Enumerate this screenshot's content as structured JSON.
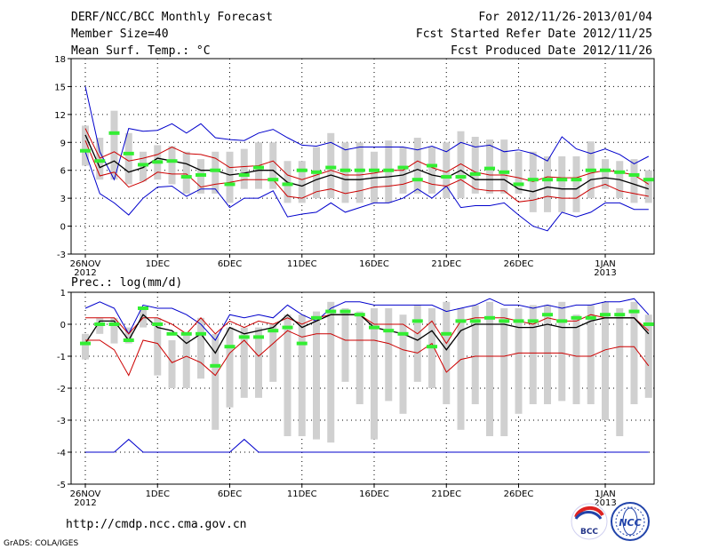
{
  "header": {
    "left": [
      "DERF/NCC/BCC Monthly Forecast",
      "Member Size=40",
      "Mean Surf. Temp.: °C"
    ],
    "right": [
      "For 2012/11/26-2013/01/04",
      "Fcst Started Refer Date 2012/11/25",
      "Fcst Produced Date 2012/11/26"
    ]
  },
  "footer": {
    "url": "http://cmdp.ncc.cma.gov.cn",
    "grads": "GrADS: COLA/IGES",
    "logo1": "BCC",
    "logo2": "NCC"
  },
  "colors": {
    "max_min": "#0000cc",
    "pct": "#cc0000",
    "mean": "#000000",
    "obs": "#33ee33",
    "box": "#d0d0d0"
  },
  "chart_data": [
    {
      "type": "line",
      "title": "Mean Surf. Temp.: °C",
      "xlabels": [
        "26NOV\n2012",
        "1DEC",
        "6DEC",
        "11DEC",
        "16DEC",
        "21DEC",
        "26DEC",
        "1JAN\n2013"
      ],
      "xlabel_days": [
        0,
        5,
        10,
        15,
        20,
        25,
        30,
        36
      ],
      "ylim": [
        -3,
        18
      ],
      "yticks": [
        -3,
        0,
        3,
        6,
        9,
        12,
        15,
        18
      ],
      "days": 40,
      "series": [
        {
          "name": "max",
          "values": [
            15,
            8,
            5,
            10.5,
            10.2,
            10.3,
            11,
            10,
            11,
            9.5,
            9.3,
            9.2,
            10,
            10.4,
            9.5,
            8.7,
            8.6,
            9,
            8.2,
            8.5,
            8.5,
            8.5,
            8.5,
            8.2,
            8.6,
            8,
            9,
            8.5,
            8.7,
            8,
            8.2,
            7.8,
            7,
            9.6,
            8.3,
            7.8,
            8.3,
            7.7,
            6.7,
            7.5
          ]
        },
        {
          "name": "min",
          "values": [
            8,
            3.5,
            2.5,
            1.2,
            3,
            4.2,
            4.3,
            3.2,
            4,
            4,
            2,
            3,
            3,
            3.8,
            1,
            1.3,
            1.5,
            2.5,
            1.5,
            2,
            2.5,
            2.5,
            3,
            4,
            3,
            4.3,
            2,
            2.2,
            2.2,
            2.5,
            1.2,
            0,
            -0.5,
            1.5,
            1,
            1.5,
            2.5,
            2.5,
            1.8,
            1.8
          ]
        },
        {
          "name": "p90",
          "values": [
            10.5,
            7.3,
            8,
            7,
            7.3,
            7.7,
            8.5,
            7.8,
            7.7,
            7.3,
            6.3,
            6.4,
            6.5,
            7,
            5.5,
            5,
            5.5,
            6,
            5.5,
            5.5,
            5.7,
            6,
            6,
            7,
            6.3,
            5.8,
            6.7,
            5.8,
            5.5,
            5.5,
            5.2,
            4.8,
            5.3,
            5.2,
            5.2,
            5.7,
            6,
            5.8,
            5.5,
            4.5
          ]
        },
        {
          "name": "mean",
          "values": [
            9.8,
            6.3,
            7,
            5.8,
            6.3,
            7.3,
            7,
            6.7,
            6,
            6,
            5.5,
            5.7,
            6,
            6,
            4.7,
            4.3,
            5,
            5.5,
            5,
            5,
            5.2,
            5.3,
            5.5,
            6.1,
            5.5,
            5.2,
            6,
            5,
            5,
            5,
            4,
            3.7,
            4.2,
            4,
            4,
            5,
            5.2,
            5,
            4.5,
            4
          ]
        },
        {
          "name": "p10",
          "values": [
            9.2,
            5.4,
            5.8,
            4.2,
            4.8,
            5.8,
            5.6,
            5.6,
            4.2,
            4.5,
            4.7,
            5,
            5,
            5,
            3.2,
            3,
            3.7,
            4,
            3.5,
            3.8,
            4.2,
            4.3,
            4.5,
            5,
            4.5,
            4.3,
            5,
            4,
            3.8,
            3.8,
            2.6,
            2.8,
            3.2,
            3,
            3,
            4,
            4.5,
            3.8,
            3.5,
            3.2
          ]
        },
        {
          "name": "obs",
          "values": [
            8.1,
            7,
            10,
            7.8,
            6.6,
            6.9,
            7,
            5.3,
            5.5,
            6,
            4.5,
            5.5,
            6.3,
            5,
            4.5,
            6,
            5.8,
            6.3,
            6,
            6,
            6,
            6,
            6.3,
            5,
            6.5,
            5.3,
            5.3,
            5.6,
            6.2,
            5.8,
            4.5,
            5,
            5,
            5,
            5,
            6,
            6,
            5.8,
            5.5,
            5
          ]
        }
      ],
      "box_high": [
        10.8,
        9.5,
        12.4,
        10,
        8,
        8.7,
        8.6,
        8,
        7.2,
        8,
        8,
        8.3,
        9,
        9,
        7,
        7,
        8.5,
        10,
        9,
        9,
        8,
        9.2,
        8.5,
        9.5,
        8.5,
        9,
        10.2,
        9.6,
        9.3,
        9.3,
        8,
        8,
        7.5,
        7.5,
        7.5,
        9.1,
        7.2,
        7,
        7.2,
        6
      ],
      "box_low": [
        6.5,
        5,
        5,
        4.5,
        4.8,
        5,
        4.5,
        3.5,
        3.5,
        3.5,
        2.5,
        4,
        4,
        4,
        2.5,
        2.5,
        3,
        3,
        2.5,
        2.5,
        2.5,
        2.5,
        3.5,
        3.5,
        3.5,
        3,
        3,
        3.5,
        3.5,
        3.5,
        3.5,
        1.5,
        1.5,
        1.5,
        1.5,
        3,
        4,
        3,
        2.5,
        2.5
      ]
    },
    {
      "type": "line",
      "title": "Prec.: log(mm/d)",
      "xlabels": [
        "26NOV\n2012",
        "1DEC",
        "6DEC",
        "11DEC",
        "16DEC",
        "21DEC",
        "26DEC",
        "1JAN\n2013"
      ],
      "xlabel_days": [
        0,
        5,
        10,
        15,
        20,
        25,
        30,
        36
      ],
      "ylim": [
        -5,
        1
      ],
      "yticks": [
        -5,
        -4,
        -3,
        -2,
        -1,
        0,
        1
      ],
      "days": 40,
      "series": [
        {
          "name": "max",
          "values": [
            0.5,
            0.7,
            0.5,
            -0.3,
            0.6,
            0.5,
            0.5,
            0.3,
            0,
            -0.5,
            0.3,
            0.2,
            0.3,
            0.2,
            0.6,
            0.3,
            0.1,
            0.5,
            0.7,
            0.7,
            0.6,
            0.6,
            0.6,
            0.6,
            0.6,
            0.4,
            0.5,
            0.6,
            0.8,
            0.6,
            0.6,
            0.5,
            0.6,
            0.5,
            0.6,
            0.6,
            0.7,
            0.7,
            0.8,
            0.3
          ]
        },
        {
          "name": "min",
          "values": [
            -4,
            -4,
            -4,
            -3.6,
            -4,
            -4,
            -4,
            -4,
            -4,
            -4,
            -4,
            -3.6,
            -4,
            -4,
            -4,
            -4,
            -4,
            -4,
            -4,
            -4,
            -4,
            -4,
            -4,
            -4,
            -4,
            -4,
            -4,
            -4,
            -4,
            -4,
            -4,
            -4,
            -4,
            -4,
            -4,
            -4,
            -4,
            -4,
            -4,
            -4
          ]
        },
        {
          "name": "p90",
          "values": [
            0.2,
            0.2,
            0.2,
            -0.3,
            0.2,
            0.2,
            0,
            -0.3,
            0.2,
            -0.3,
            0.1,
            -0.1,
            0.1,
            0,
            0.2,
            0,
            0.2,
            0.3,
            0.3,
            0.3,
            0,
            0,
            0,
            -0.3,
            0.1,
            -0.6,
            0.1,
            0.2,
            0.2,
            0.2,
            0.1,
            0,
            0.2,
            0.1,
            0.1,
            0.3,
            0.2,
            0.2,
            0.2,
            -0.2
          ]
        },
        {
          "name": "mean",
          "values": [
            -0.6,
            0.1,
            0.1,
            -0.5,
            0.3,
            -0.1,
            -0.2,
            -0.6,
            -0.3,
            -0.9,
            -0.1,
            -0.3,
            -0.2,
            -0.1,
            0.3,
            -0.1,
            0.1,
            0.3,
            0.3,
            0.3,
            -0.1,
            -0.2,
            -0.3,
            -0.5,
            -0.2,
            -0.8,
            -0.2,
            0,
            0,
            0,
            -0.1,
            -0.1,
            0,
            -0.1,
            -0.1,
            0.1,
            0.2,
            0.2,
            0.2,
            -0.3
          ]
        },
        {
          "name": "p10",
          "values": [
            -0.5,
            -0.5,
            -0.8,
            -1.6,
            -0.5,
            -0.6,
            -1.2,
            -1,
            -1.2,
            -1.6,
            -0.9,
            -0.5,
            -1,
            -0.6,
            -0.2,
            -0.4,
            -0.3,
            -0.3,
            -0.5,
            -0.5,
            -0.5,
            -0.6,
            -0.8,
            -0.9,
            -0.6,
            -1.5,
            -1.1,
            -1,
            -1,
            -1,
            -0.9,
            -0.9,
            -0.9,
            -0.9,
            -1,
            -1,
            -0.8,
            -0.7,
            -0.7,
            -1.3
          ]
        },
        {
          "name": "obs",
          "values": [
            -0.6,
            0,
            0,
            -0.5,
            0.5,
            0,
            -0.3,
            -0.3,
            -0.3,
            -1.3,
            -0.7,
            -0.4,
            -0.4,
            -0.2,
            -0.1,
            -0.6,
            0.2,
            0.4,
            0.4,
            0.3,
            -0.1,
            -0.2,
            -0.3,
            0.1,
            -0.7,
            -0.3,
            0.1,
            0.1,
            0.2,
            0.1,
            0.1,
            0.1,
            0.3,
            0.1,
            0.2,
            0.2,
            0.3,
            0.3,
            0.4,
            0
          ]
        }
      ],
      "box_high": [
        -0.3,
        0.2,
        0.2,
        -0.1,
        0.5,
        0.2,
        -0.5,
        -0.3,
        0.2,
        -0.3,
        -0.1,
        -0.1,
        -0.1,
        0,
        0.3,
        0.3,
        0.4,
        0.7,
        0.5,
        0.4,
        0.5,
        0.5,
        0.3,
        0.6,
        0.5,
        0.7,
        0.5,
        0.6,
        0.7,
        0.5,
        0.5,
        0.6,
        0.6,
        0.7,
        0.3,
        0.6,
        0.7,
        0.5,
        0.7,
        0.3
      ],
      "box_low": [
        -1.1,
        -0.3,
        -0.6,
        -0.6,
        -0.1,
        -1.6,
        -2,
        -2,
        -1.7,
        -3.3,
        -2.6,
        -2.3,
        -2.3,
        -1.8,
        -3.5,
        -3.5,
        -3.6,
        -3.7,
        -1.8,
        -2.5,
        -3.6,
        -2.4,
        -2.8,
        -1.8,
        -2,
        -2.5,
        -3.3,
        -2.5,
        -3.5,
        -3.5,
        -2.8,
        -2.5,
        -2.5,
        -2.4,
        -2.5,
        -2.5,
        -3,
        -3.5,
        -2.5,
        -2.3
      ]
    }
  ]
}
